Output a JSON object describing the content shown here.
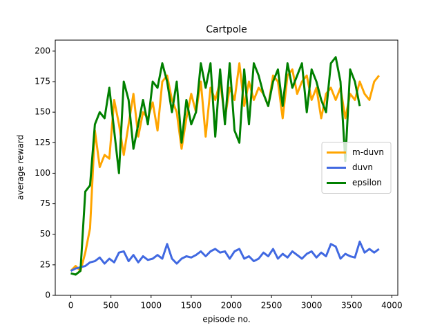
{
  "chart_data": {
    "type": "line",
    "title": "Cartpole",
    "xlabel": "episode no.",
    "ylabel": "average reward",
    "x": [
      0,
      60,
      120,
      180,
      240,
      300,
      360,
      420,
      480,
      540,
      600,
      660,
      720,
      780,
      840,
      900,
      960,
      1020,
      1080,
      1140,
      1200,
      1260,
      1320,
      1380,
      1440,
      1500,
      1560,
      1620,
      1680,
      1740,
      1800,
      1860,
      1920,
      1980,
      2040,
      2100,
      2160,
      2220,
      2280,
      2340,
      2400,
      2460,
      2520,
      2580,
      2640,
      2700,
      2760,
      2820,
      2880,
      2940,
      3000,
      3060,
      3120,
      3180,
      3240,
      3300,
      3360,
      3420,
      3480,
      3540,
      3600,
      3660,
      3720,
      3780,
      3840
    ],
    "series": [
      {
        "name": "m-duvn",
        "color": "#ffa500",
        "values": [
          20,
          24,
          20,
          35,
          55,
          135,
          105,
          115,
          112,
          160,
          140,
          115,
          140,
          165,
          130,
          150,
          145,
          158,
          135,
          175,
          180,
          160,
          150,
          120,
          145,
          165,
          150,
          175,
          130,
          170,
          160,
          175,
          145,
          170,
          160,
          190,
          155,
          175,
          160,
          170,
          165,
          155,
          180,
          175,
          145,
          180,
          185,
          165,
          175,
          180,
          160,
          170,
          145,
          165,
          170,
          160,
          170,
          145,
          165,
          160,
          175,
          165,
          160,
          175,
          180
        ]
      },
      {
        "name": "duvn",
        "color": "#4169e1",
        "values": [
          20,
          22,
          23,
          24,
          27,
          28,
          31,
          26,
          30,
          27,
          35,
          36,
          28,
          33,
          27,
          32,
          29,
          30,
          33,
          30,
          42,
          30,
          26,
          30,
          32,
          31,
          33,
          36,
          32,
          36,
          38,
          35,
          36,
          30,
          36,
          38,
          30,
          32,
          28,
          30,
          35,
          32,
          38,
          30,
          34,
          31,
          36,
          33,
          30,
          34,
          36,
          31,
          35,
          32,
          42,
          40,
          30,
          34,
          32,
          31,
          44,
          35,
          38,
          35,
          38
        ]
      },
      {
        "name": "epsilon",
        "color": "#008000",
        "values": [
          18,
          17,
          20,
          85,
          90,
          140,
          150,
          145,
          170,
          135,
          100,
          175,
          160,
          120,
          140,
          160,
          140,
          175,
          170,
          190,
          175,
          150,
          175,
          125,
          160,
          140,
          150,
          190,
          170,
          190,
          130,
          185,
          140,
          190,
          135,
          125,
          185,
          140,
          190,
          180,
          165,
          155,
          175,
          185,
          155,
          190,
          170,
          180,
          190,
          150,
          185,
          175,
          160,
          150,
          190,
          195,
          175,
          110,
          185,
          175,
          155,
          null,
          null,
          null,
          null
        ]
      }
    ],
    "xlim": [
      -194,
      4074
    ],
    "xticks": [
      0,
      500,
      1000,
      1500,
      2000,
      2500,
      3000,
      3500,
      4000
    ],
    "ylim": [
      0,
      209
    ],
    "yticks": [
      0,
      25,
      50,
      75,
      100,
      125,
      150,
      175,
      200
    ],
    "legend": "center right"
  }
}
